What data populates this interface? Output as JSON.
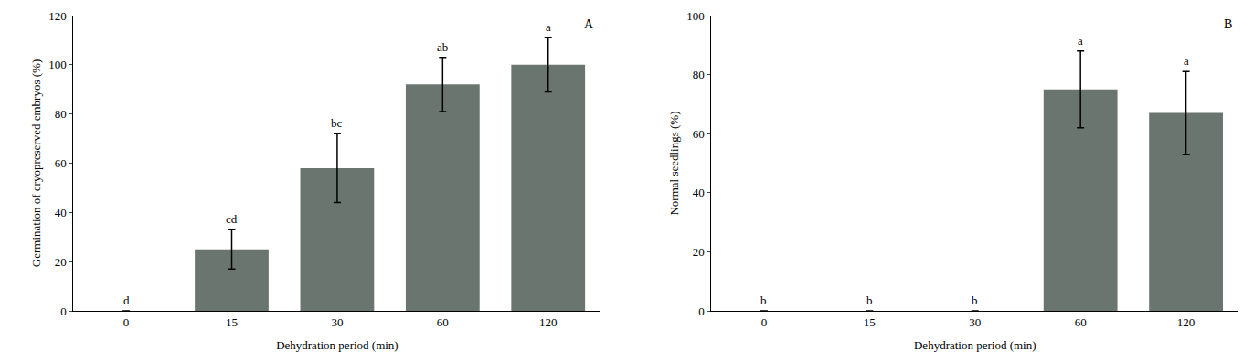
{
  "chart_data": [
    {
      "type": "bar",
      "label": "A",
      "x_label": "Dehydration period (min)",
      "y_label": "Germination of cryopreserved embryos (%)",
      "categories": [
        "0",
        "15",
        "30",
        "60",
        "120"
      ],
      "values": [
        0,
        25,
        58,
        92,
        100
      ],
      "errors": [
        0,
        8,
        14,
        11,
        11
      ],
      "annotations": [
        "d",
        "cd",
        "bc",
        "ab",
        "a"
      ],
      "color": "#6b7570",
      "ylim": [
        0,
        120
      ],
      "yticks": [
        0,
        20,
        40,
        60,
        80,
        100,
        120
      ],
      "grid": false
    },
    {
      "type": "bar",
      "label": "B",
      "x_label": "Dehydration period (min)",
      "y_label": "Normal seedlings (%)",
      "categories": [
        "0",
        "15",
        "30",
        "60",
        "120"
      ],
      "values": [
        0,
        0,
        0,
        75,
        67
      ],
      "errors": [
        0,
        0,
        0,
        13,
        14
      ],
      "annotations": [
        "b",
        "b",
        "b",
        "a",
        "a"
      ],
      "color": "#6b7570",
      "ylim": [
        0,
        100
      ],
      "yticks": [
        0,
        20,
        40,
        60,
        80,
        100
      ],
      "grid": false
    }
  ]
}
